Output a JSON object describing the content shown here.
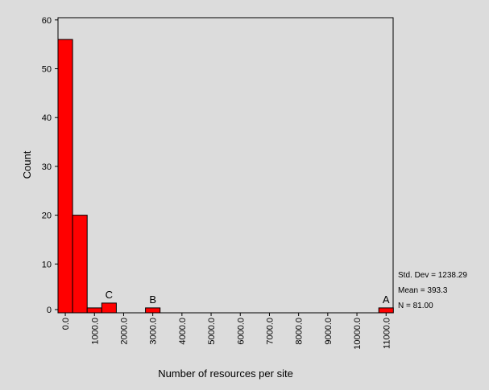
{
  "chart_data": {
    "type": "bar",
    "title": "",
    "xlabel": "Number of resources per site",
    "ylabel": "Count",
    "ylim": [
      0,
      60
    ],
    "yticks": [
      "0",
      "10",
      "20",
      "30",
      "40",
      "50",
      "60"
    ],
    "xticks": [
      "0.0",
      "1000.0",
      "2000.0",
      "3000.0",
      "4000.0",
      "5000.0",
      "6000.0",
      "7000.0",
      "8000.0",
      "9000.0",
      "10000.0",
      "11000.0"
    ],
    "bin_width": 500,
    "bins": [
      {
        "x": 0,
        "count": 56
      },
      {
        "x": 500,
        "count": 20
      },
      {
        "x": 1000,
        "count": 1
      },
      {
        "x": 1500,
        "count": 2
      },
      {
        "x": 3000,
        "count": 1
      },
      {
        "x": 11000,
        "count": 1
      }
    ],
    "annotations": [
      {
        "text": "C",
        "x": 1500,
        "y": 2
      },
      {
        "text": "B",
        "x": 3000,
        "y": 1
      },
      {
        "text": "A",
        "x": 11000,
        "y": 1
      }
    ],
    "stats": {
      "std_dev": "Std. Dev = 1238.29",
      "mean": "Mean = 393.3",
      "n": "N = 81.00"
    },
    "bar_color": "#ff0000",
    "grid": false
  }
}
